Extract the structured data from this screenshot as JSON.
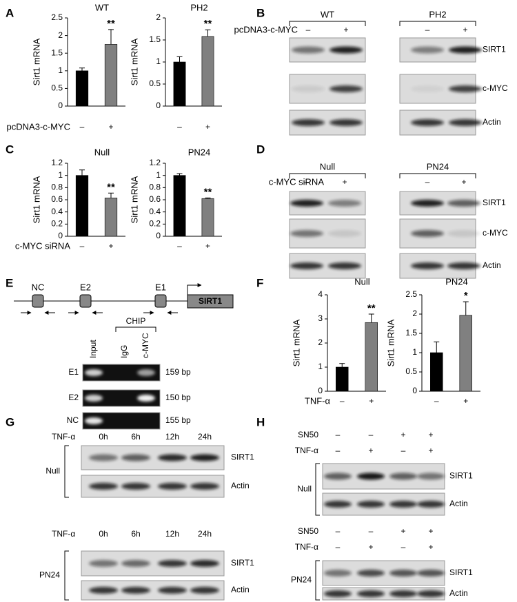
{
  "panel_labels": [
    "A",
    "B",
    "C",
    "D",
    "E",
    "F",
    "G",
    "H"
  ],
  "chart_data": [
    {
      "type": "bar",
      "title": "WT",
      "y_label": "Sirt1 mRNA",
      "x_label": "pcDNA3-c-MYC",
      "categories": [
        "–",
        "+"
      ],
      "values": [
        1,
        1.75
      ],
      "errors": [
        0.08,
        0.42
      ],
      "colors": [
        "#000000",
        "#808080"
      ],
      "annotation": "**",
      "ylim": [
        0,
        2.5
      ],
      "yticks": [
        0,
        0.5,
        1,
        1.5,
        2,
        2.5
      ]
    },
    {
      "type": "bar",
      "title": "PH2",
      "y_label": "Sirt1 mRNA",
      "categories": [
        "–",
        "+"
      ],
      "values": [
        1,
        1.58
      ],
      "errors": [
        0.12,
        0.15
      ],
      "colors": [
        "#000000",
        "#808080"
      ],
      "annotation": "**",
      "ylim": [
        0,
        2
      ],
      "yticks": [
        0,
        0.5,
        1,
        1.5,
        2
      ]
    },
    {
      "type": "bar",
      "title": "Null",
      "y_label": "Sirt1 mRNA",
      "x_label": "c-MYC siRNA",
      "categories": [
        "–",
        "+"
      ],
      "values": [
        1,
        0.63
      ],
      "errors": [
        0.09,
        0.08
      ],
      "colors": [
        "#000000",
        "#808080"
      ],
      "annotation": "**",
      "ylim": [
        0,
        1.2
      ],
      "yticks": [
        0,
        0.2,
        0.4,
        0.6,
        0.8,
        1,
        1.2
      ]
    },
    {
      "type": "bar",
      "title": "PN24",
      "y_label": "Sirt1 mRNA",
      "categories": [
        "–",
        "+"
      ],
      "values": [
        1,
        0.62
      ],
      "errors": [
        0.03,
        0.01
      ],
      "colors": [
        "#000000",
        "#808080"
      ],
      "annotation": "**",
      "ylim": [
        0,
        1.2
      ],
      "yticks": [
        0,
        0.2,
        0.4,
        0.6,
        0.8,
        1,
        1.2
      ]
    },
    {
      "type": "bar",
      "title": "Null",
      "y_label": "Sirt1 mRNA",
      "x_label": "TNF-α",
      "categories": [
        "–",
        "+"
      ],
      "values": [
        1,
        2.85
      ],
      "errors": [
        0.15,
        0.35
      ],
      "colors": [
        "#000000",
        "#808080"
      ],
      "annotation": "**",
      "ylim": [
        0,
        4
      ],
      "yticks": [
        0,
        1,
        2,
        3,
        4
      ]
    },
    {
      "type": "bar",
      "title": "PN24",
      "y_label": "Sirt1 mRNA",
      "categories": [
        "–",
        "+"
      ],
      "values": [
        1,
        1.97
      ],
      "errors": [
        0.28,
        0.35
      ],
      "colors": [
        "#000000",
        "#808080"
      ],
      "annotation": "*",
      "ylim": [
        0,
        2.5
      ],
      "yticks": [
        0,
        0.5,
        1,
        1.5,
        2,
        2.5
      ]
    }
  ],
  "blot_b": {
    "treatment": "pcDNA3-c-MYC",
    "groups": [
      "WT",
      "PH2"
    ],
    "signs": [
      "–",
      "+",
      "–",
      "+"
    ],
    "rows": [
      "SIRT1",
      "c-MYC",
      "Actin"
    ]
  },
  "blot_d": {
    "treatment": "c-MYC siRNA",
    "groups": [
      "Null",
      "PN24"
    ],
    "signs": [
      "–",
      "+",
      "–",
      "+"
    ],
    "rows": [
      "SIRT1",
      "c-MYC",
      "Actin"
    ]
  },
  "panel_e": {
    "elements": [
      "NC",
      "E2",
      "E1"
    ],
    "gene": "SIRT1",
    "chip": "CHIP",
    "lanes": [
      "Input",
      "IgG",
      "c-MYC"
    ],
    "rows": [
      {
        "label": "E1",
        "size": "159 bp"
      },
      {
        "label": "E2",
        "size": "150 bp"
      },
      {
        "label": "NC",
        "size": "155 bp"
      }
    ]
  },
  "blot_g": {
    "blocks": [
      {
        "group": "Null",
        "treatment": "TNF-α",
        "times": [
          "0h",
          "6h",
          "12h",
          "24h"
        ],
        "rows": [
          "SIRT1",
          "Actin"
        ]
      },
      {
        "group": "PN24",
        "treatment": "TNF-α",
        "times": [
          "0h",
          "6h",
          "12h",
          "24h"
        ],
        "rows": [
          "SIRT1",
          "Actin"
        ]
      }
    ]
  },
  "blot_h": {
    "blocks": [
      {
        "group": "Null",
        "conditions": [
          {
            "label": "SN50",
            "signs": [
              "–",
              "–",
              "+",
              "+"
            ]
          },
          {
            "label": "TNF-α",
            "signs": [
              "–",
              "+",
              "–",
              "+"
            ]
          }
        ],
        "rows": [
          "SIRT1",
          "Actin"
        ]
      },
      {
        "group": "PN24",
        "conditions": [
          {
            "label": "SN50",
            "signs": [
              "–",
              "–",
              "+",
              "+"
            ]
          },
          {
            "label": "TNF-α",
            "signs": [
              "–",
              "+",
              "–",
              "+"
            ]
          }
        ],
        "rows": [
          "SIRT1",
          "Actin"
        ]
      }
    ]
  }
}
